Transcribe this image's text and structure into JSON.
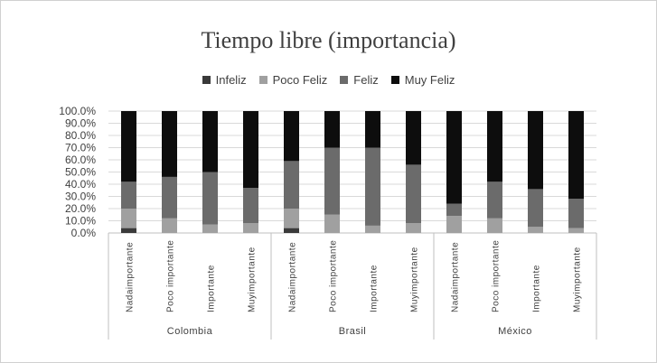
{
  "chart_data": {
    "type": "bar",
    "stacked": true,
    "title": "Tiempo libre (importancia)",
    "legend_position": "top",
    "groups": [
      {
        "name": "Colombia",
        "categories": [
          "Nadaimportante",
          "Poco importante",
          "Importante",
          "Muyimportante"
        ]
      },
      {
        "name": "Brasil",
        "categories": [
          "Nadaimportante",
          "Poco importante",
          "Importante",
          "Muyimportante"
        ]
      },
      {
        "name": "México",
        "categories": [
          "Nadaimportante",
          "Poco importante",
          "Importante",
          "Muyimportante"
        ]
      }
    ],
    "series": [
      {
        "name": "Infeliz",
        "color": "#3a3a3a",
        "values": [
          4,
          0,
          0,
          0,
          4,
          0,
          0,
          0,
          0,
          0,
          0,
          0
        ]
      },
      {
        "name": "Poco Feliz",
        "color": "#a0a0a0",
        "values": [
          16,
          12,
          7,
          8,
          16,
          15,
          6,
          8,
          14,
          12,
          5,
          4
        ]
      },
      {
        "name": "Feliz",
        "color": "#6b6b6b",
        "values": [
          22,
          34,
          43,
          29,
          39,
          55,
          64,
          48,
          10,
          30,
          31,
          24
        ]
      },
      {
        "name": "Muy Feliz",
        "color": "#0d0d0d",
        "values": [
          58,
          54,
          50,
          63,
          41,
          30,
          30,
          44,
          76,
          58,
          64,
          72
        ]
      }
    ],
    "yticks": [
      "0.0%",
      "10.0%",
      "20.0%",
      "30.0%",
      "40.0%",
      "50.0%",
      "60.0%",
      "70.0%",
      "80.0%",
      "90.0%",
      "100.0%"
    ],
    "ylim": [
      0,
      100
    ],
    "grid": true
  }
}
